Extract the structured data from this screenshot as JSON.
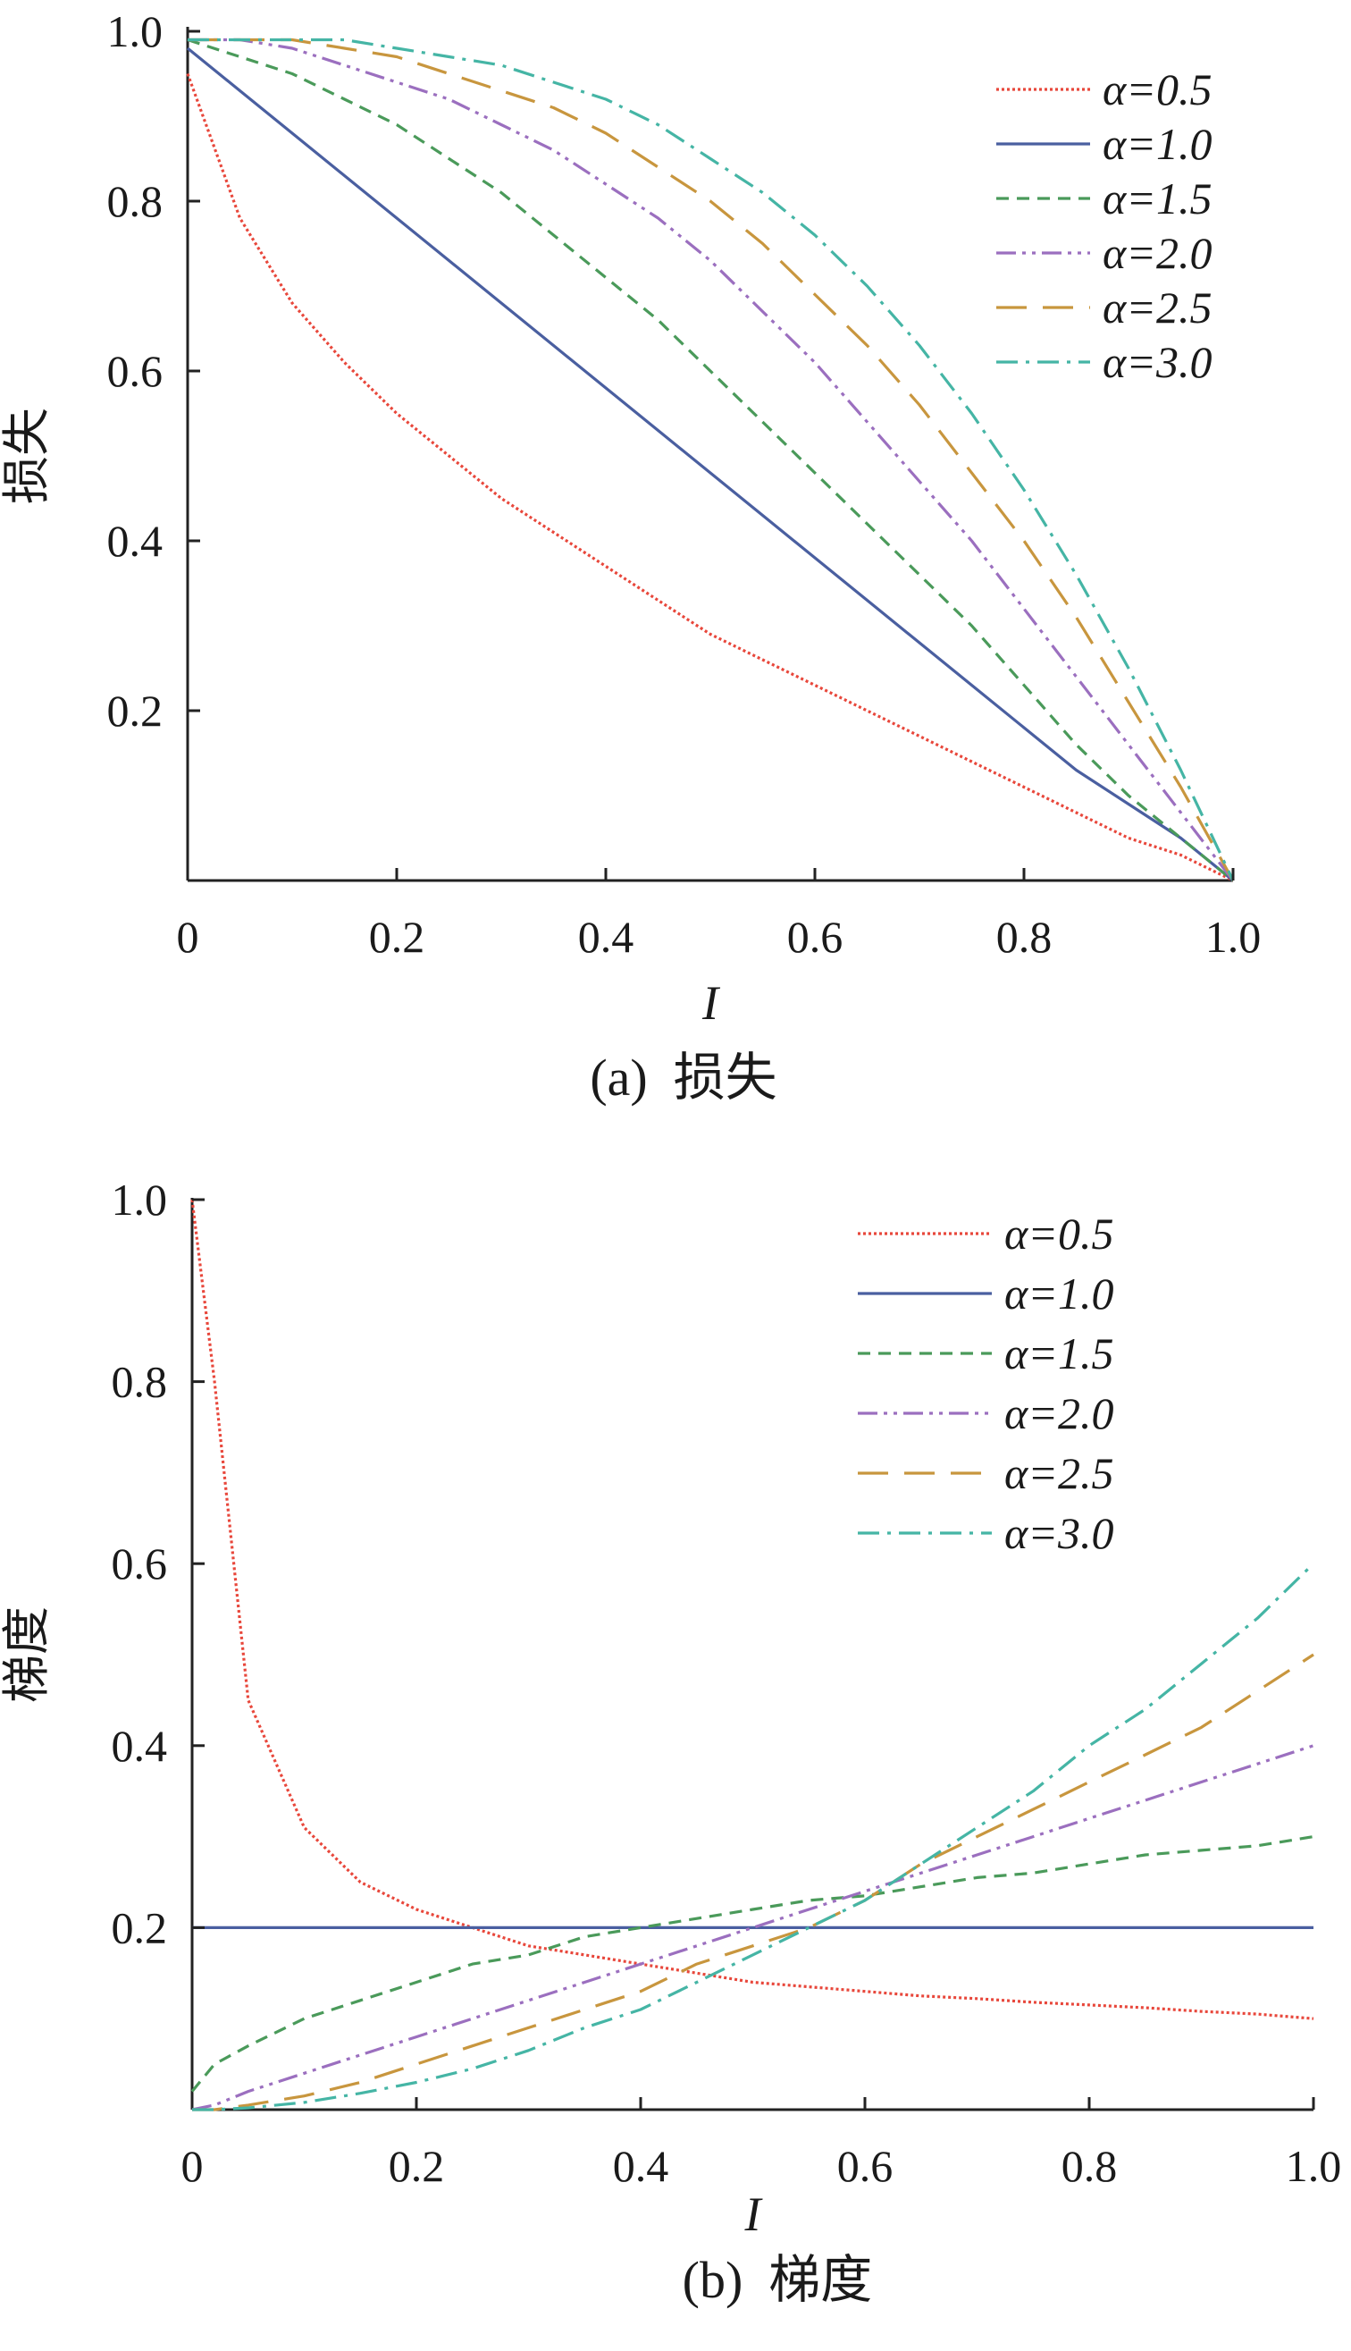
{
  "chart_data": [
    {
      "type": "line",
      "caption": "(a)  损失",
      "xlabel": "I",
      "ylabel": "损失",
      "xlim": [
        0,
        1
      ],
      "ylim": [
        0,
        1
      ],
      "x_ticks": [
        "0",
        "0.2",
        "0.4",
        "0.6",
        "0.8",
        "1.0"
      ],
      "y_ticks": [
        "0.2",
        "0.4",
        "0.6",
        "0.8",
        "1.0"
      ],
      "grid": false,
      "legend_position": "top-right",
      "x": [
        0,
        0.05,
        0.1,
        0.15,
        0.2,
        0.25,
        0.3,
        0.35,
        0.4,
        0.45,
        0.5,
        0.55,
        0.6,
        0.65,
        0.7,
        0.75,
        0.8,
        0.85,
        0.9,
        0.95,
        1.0
      ],
      "series": [
        {
          "name": "α=0.5",
          "color": "#e8473b",
          "dash": "dotted",
          "values": [
            0.95,
            0.78,
            0.68,
            0.61,
            0.55,
            0.5,
            0.45,
            0.41,
            0.37,
            0.33,
            0.29,
            0.26,
            0.23,
            0.2,
            0.17,
            0.14,
            0.11,
            0.08,
            0.05,
            0.03,
            0.0
          ]
        },
        {
          "name": "α=1.0",
          "color": "#4a5fa0",
          "dash": "solid",
          "values": [
            0.98,
            0.93,
            0.88,
            0.83,
            0.78,
            0.73,
            0.68,
            0.63,
            0.58,
            0.53,
            0.48,
            0.43,
            0.38,
            0.33,
            0.28,
            0.23,
            0.18,
            0.13,
            0.09,
            0.05,
            0.0
          ]
        },
        {
          "name": "α=1.5",
          "color": "#4a9a5a",
          "dash": "dashed",
          "values": [
            0.99,
            0.97,
            0.95,
            0.92,
            0.89,
            0.85,
            0.81,
            0.76,
            0.71,
            0.66,
            0.6,
            0.54,
            0.48,
            0.42,
            0.36,
            0.3,
            0.23,
            0.16,
            0.1,
            0.05,
            0.0
          ]
        },
        {
          "name": "α=2.0",
          "color": "#9b6fbf",
          "dash": "dashdotdot",
          "values": [
            0.99,
            0.99,
            0.98,
            0.96,
            0.94,
            0.92,
            0.89,
            0.86,
            0.82,
            0.78,
            0.73,
            0.67,
            0.61,
            0.54,
            0.47,
            0.4,
            0.32,
            0.24,
            0.16,
            0.08,
            0.0
          ]
        },
        {
          "name": "α=2.5",
          "color": "#c8963e",
          "dash": "longdash",
          "values": [
            0.99,
            0.99,
            0.99,
            0.98,
            0.97,
            0.95,
            0.93,
            0.91,
            0.88,
            0.84,
            0.8,
            0.75,
            0.69,
            0.63,
            0.56,
            0.48,
            0.4,
            0.31,
            0.21,
            0.11,
            0.0
          ]
        },
        {
          "name": "α=3.0",
          "color": "#45b5a5",
          "dash": "dashdot",
          "values": [
            0.99,
            0.99,
            0.99,
            0.99,
            0.98,
            0.97,
            0.96,
            0.94,
            0.92,
            0.89,
            0.85,
            0.81,
            0.76,
            0.7,
            0.63,
            0.55,
            0.46,
            0.36,
            0.25,
            0.13,
            0.0
          ]
        }
      ]
    },
    {
      "type": "line",
      "caption": "(b)  梯度",
      "xlabel": "I",
      "ylabel": "梯度",
      "xlim": [
        0,
        1
      ],
      "ylim": [
        0,
        1
      ],
      "x_ticks": [
        "0",
        "0.2",
        "0.4",
        "0.6",
        "0.8",
        "1.0"
      ],
      "y_ticks": [
        "0.2",
        "0.4",
        "0.6",
        "0.8",
        "1.0"
      ],
      "grid": false,
      "legend_position": "top-right",
      "x": [
        0,
        0.02,
        0.05,
        0.1,
        0.15,
        0.2,
        0.25,
        0.3,
        0.35,
        0.4,
        0.45,
        0.5,
        0.55,
        0.6,
        0.65,
        0.7,
        0.75,
        0.8,
        0.85,
        0.9,
        0.95,
        1.0
      ],
      "series": [
        {
          "name": "α=0.5",
          "color": "#e8473b",
          "dash": "dotted",
          "values": [
            1.0,
            0.8,
            0.45,
            0.31,
            0.25,
            0.22,
            0.2,
            0.18,
            0.17,
            0.16,
            0.15,
            0.14,
            0.135,
            0.13,
            0.125,
            0.122,
            0.118,
            0.115,
            0.112,
            0.108,
            0.105,
            0.1
          ]
        },
        {
          "name": "α=1.0",
          "color": "#4a5fa0",
          "dash": "solid",
          "values": [
            0.2,
            0.2,
            0.2,
            0.2,
            0.2,
            0.2,
            0.2,
            0.2,
            0.2,
            0.2,
            0.2,
            0.2,
            0.2,
            0.2,
            0.2,
            0.2,
            0.2,
            0.2,
            0.2,
            0.2,
            0.2,
            0.2
          ]
        },
        {
          "name": "α=1.5",
          "color": "#4a9a5a",
          "dash": "dashed",
          "values": [
            0.02,
            0.05,
            0.07,
            0.1,
            0.12,
            0.14,
            0.16,
            0.17,
            0.19,
            0.2,
            0.21,
            0.22,
            0.23,
            0.235,
            0.245,
            0.255,
            0.26,
            0.27,
            0.28,
            0.285,
            0.29,
            0.3
          ]
        },
        {
          "name": "α=2.0",
          "color": "#9b6fbf",
          "dash": "dashdotdot",
          "values": [
            0.0,
            0.005,
            0.02,
            0.04,
            0.06,
            0.08,
            0.1,
            0.12,
            0.14,
            0.16,
            0.18,
            0.2,
            0.22,
            0.24,
            0.26,
            0.28,
            0.3,
            0.32,
            0.34,
            0.36,
            0.38,
            0.4
          ]
        },
        {
          "name": "α=2.5",
          "color": "#c8963e",
          "dash": "longdash",
          "values": [
            0.0,
            0.0,
            0.005,
            0.015,
            0.03,
            0.05,
            0.07,
            0.09,
            0.11,
            0.13,
            0.16,
            0.18,
            0.2,
            0.23,
            0.27,
            0.3,
            0.33,
            0.36,
            0.39,
            0.42,
            0.46,
            0.5
          ]
        },
        {
          "name": "α=3.0",
          "color": "#45b5a5",
          "dash": "dashdot",
          "values": [
            0.0,
            0.0,
            0.002,
            0.008,
            0.018,
            0.03,
            0.045,
            0.065,
            0.09,
            0.11,
            0.14,
            0.17,
            0.2,
            0.23,
            0.27,
            0.31,
            0.35,
            0.4,
            0.44,
            0.49,
            0.54,
            0.6
          ]
        }
      ]
    }
  ]
}
